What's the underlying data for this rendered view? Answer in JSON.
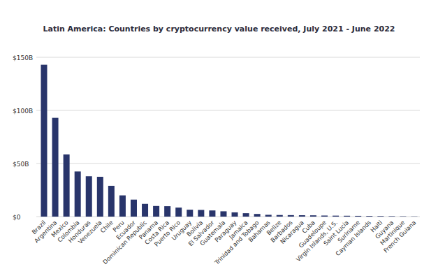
{
  "chart_data": {
    "type": "bar",
    "title": "Latin America: Countries by cryptocurrency value received, July 2021 - June 2022",
    "categories": [
      "Brazil",
      "Argentina",
      "Mexico",
      "Colombia",
      "Honduras",
      "Venezuela",
      "Chile",
      "Peru",
      "Ecuador",
      "Dominican Republic",
      "Panama",
      "Costa Rica",
      "Puerto Rico",
      "Uruguay",
      "Bolivia",
      "El Salvador",
      "Guatemala",
      "Paraguay",
      "Jamaica",
      "Trinidad and Tobago",
      "Bahamas",
      "Belize",
      "Barbados",
      "Nicaragua",
      "Cuba",
      "Guadeloupe",
      "Virgin Islands, U.S.",
      "Saint Lucia",
      "Suriname",
      "Cayman Islands",
      "Haiti",
      "Guyana",
      "Martinique",
      "French Guiana"
    ],
    "values": [
      143,
      93,
      58.5,
      42.5,
      38,
      37.5,
      29,
      20,
      16,
      12,
      10,
      9.8,
      8.5,
      6.5,
      6.3,
      5.8,
      5,
      4,
      3.2,
      2.5,
      1.7,
      1.5,
      1.4,
      1.3,
      1.2,
      1.0,
      0.9,
      0.8,
      0.7,
      0.6,
      0.5,
      0.4,
      0.3,
      0.2
    ],
    "color": "#29356b",
    "ylim": [
      0,
      150
    ],
    "yticks": [
      {
        "value": 0,
        "label": "$0"
      },
      {
        "value": 50,
        "label": "$50B"
      },
      {
        "value": 100,
        "label": "$100B"
      },
      {
        "value": 150,
        "label": "$150B"
      }
    ],
    "grid": true
  }
}
